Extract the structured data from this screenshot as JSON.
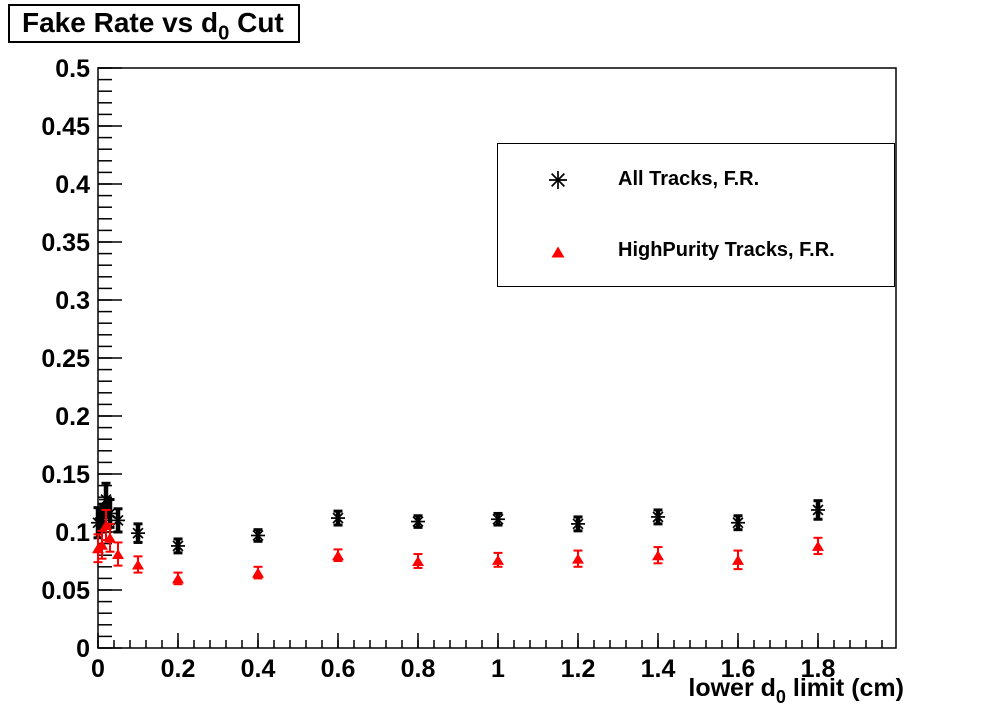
{
  "canvas": {
    "background": "#ffffff"
  },
  "title": {
    "full": "Fake Rate vs d0 Cut",
    "parts": {
      "pre": "Fake Rate vs d",
      "sub": "0",
      "post": " Cut"
    }
  },
  "chart_data": {
    "type": "scatter",
    "title": "Fake Rate vs d0 Cut",
    "xlabel": "lower d0 limit (cm)",
    "xlabel_parts": {
      "pre": "lower d",
      "sub": "0",
      "post": " limit (cm)"
    },
    "ylabel": "",
    "xlim": [
      0,
      1.995
    ],
    "ylim": [
      0,
      0.5
    ],
    "x_tick_labels": [
      "0",
      "0.2",
      "0.4",
      "0.6",
      "0.8",
      "1",
      "1.2",
      "1.4",
      "1.6",
      "1.8"
    ],
    "y_tick_labels": [
      "0",
      "0.05",
      "0.1",
      "0.15",
      "0.2",
      "0.25",
      "0.3",
      "0.35",
      "0.4",
      "0.45",
      "0.5"
    ],
    "x_minor_step": 0.04,
    "y_minor_step": 0.01,
    "grid": false,
    "legend_position": "upper right",
    "x": [
      0.0,
      0.01,
      0.02,
      0.03,
      0.05,
      0.1,
      0.2,
      0.4,
      0.6,
      0.8,
      1.0,
      1.2,
      1.4,
      1.6,
      1.8
    ],
    "series": [
      {
        "name": "All Tracks, F.R.",
        "marker": "asterisk",
        "color": "#000000",
        "y": [
          0.108,
          0.112,
          0.128,
          0.116,
          0.11,
          0.099,
          0.088,
          0.097,
          0.112,
          0.109,
          0.111,
          0.107,
          0.113,
          0.108,
          0.119
        ],
        "yerr": [
          0.013,
          0.012,
          0.014,
          0.012,
          0.01,
          0.008,
          0.006,
          0.005,
          0.006,
          0.005,
          0.005,
          0.006,
          0.006,
          0.006,
          0.008
        ]
      },
      {
        "name": "HighPurity Tracks, F.R.",
        "marker": "triangle-filled",
        "color": "#ff0000",
        "y": [
          0.086,
          0.089,
          0.106,
          0.095,
          0.081,
          0.072,
          0.06,
          0.065,
          0.08,
          0.075,
          0.076,
          0.077,
          0.08,
          0.076,
          0.088
        ],
        "yerr": [
          0.012,
          0.012,
          0.013,
          0.012,
          0.01,
          0.007,
          0.005,
          0.005,
          0.005,
          0.006,
          0.006,
          0.007,
          0.007,
          0.008,
          0.007
        ]
      }
    ]
  }
}
